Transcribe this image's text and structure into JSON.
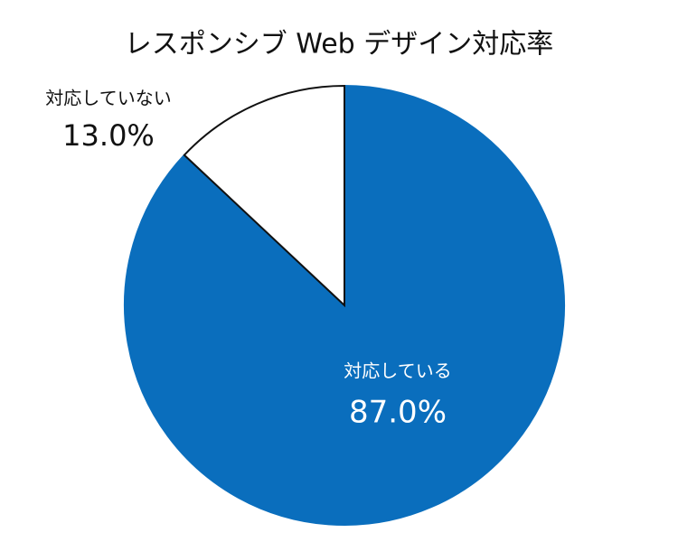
{
  "chart_data": {
    "type": "pie",
    "title": "レスポンシブ Web デザイン対応率",
    "categories": [
      "対応している",
      "対応していない"
    ],
    "values": [
      87.0,
      13.0
    ],
    "value_labels": [
      "87.0%",
      "13.0%"
    ],
    "colors": [
      "#0a6ebd",
      "#ffffff"
    ]
  }
}
